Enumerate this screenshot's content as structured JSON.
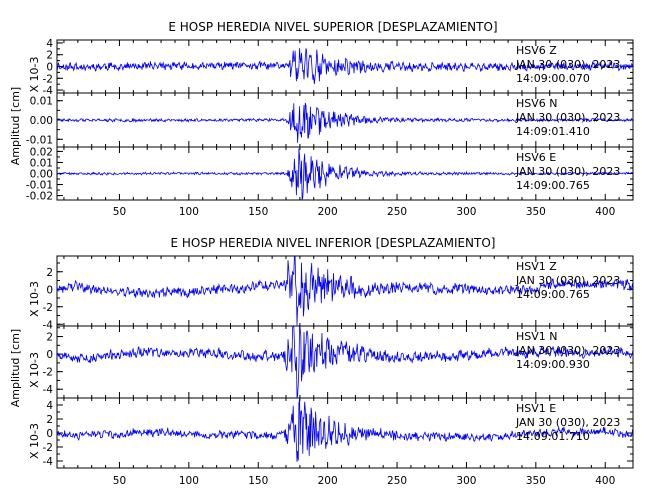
{
  "chart_data": [
    {
      "type": "line",
      "title": "E HOSP HEREDIA NIVEL SUPERIOR [DESPLAZAMIENTO]",
      "ylabel": "Amplitud [cm]",
      "x_ticks": [
        50,
        100,
        150,
        200,
        250,
        300,
        350,
        400
      ],
      "xlim": [
        5,
        420
      ],
      "event_x": 178,
      "panels": [
        {
          "station": "HSV6",
          "component": "Z",
          "date": "JAN 30 (030), 2023",
          "time": "14:09:00.070",
          "ylabel": "X 10-3",
          "ylim": [
            -4.5,
            4.5
          ],
          "y_ticks": [
            "4",
            "2",
            "0",
            "-2",
            "-4"
          ],
          "y_tick_values": [
            4,
            2,
            0,
            -2,
            -4
          ],
          "noise": 0.55,
          "peak": 3.2,
          "drift": 0.2,
          "seed": 11
        },
        {
          "station": "HSV6",
          "component": "N",
          "date": "JAN 30 (030), 2023",
          "time": "14:09:01.410",
          "ylabel": "",
          "ylim": [
            -0.014,
            0.014
          ],
          "y_ticks": [
            "0.01",
            "0.00",
            "-0.01"
          ],
          "y_tick_values": [
            0.01,
            0,
            -0.01
          ],
          "noise": 0.0006,
          "peak": 0.011,
          "drift": 0.0002,
          "seed": 23
        },
        {
          "station": "HSV6",
          "component": "E",
          "date": "JAN 30 (030), 2023",
          "time": "14:09:00.765",
          "ylabel": "",
          "ylim": [
            -0.024,
            0.024
          ],
          "y_ticks": [
            "0.02",
            "0.01",
            "0.00",
            "-0.01",
            "-0.02"
          ],
          "y_tick_values": [
            0.02,
            0.01,
            0,
            -0.01,
            -0.02
          ],
          "noise": 0.0009,
          "peak": 0.021,
          "drift": 0.0003,
          "seed": 37
        }
      ]
    },
    {
      "type": "line",
      "title": "E HOSP HEREDIA NIVEL INFERIOR [DESPLAZAMIENTO]",
      "ylabel": "Amplitud [cm]",
      "x_ticks": [
        50,
        100,
        150,
        200,
        250,
        300,
        350,
        400
      ],
      "xlim": [
        5,
        420
      ],
      "event_x": 176,
      "panels": [
        {
          "station": "HSV1",
          "component": "Z",
          "date": "JAN 30 (030), 2023",
          "time": "14:09:00.765",
          "ylabel": "X 10-3",
          "ylim": [
            -4.2,
            3.8
          ],
          "y_ticks": [
            "2",
            "0",
            "-2",
            "-4"
          ],
          "y_tick_values": [
            2,
            0,
            -2,
            -4
          ],
          "noise": 0.45,
          "peak": 3.8,
          "drift": 0.7,
          "seed": 41
        },
        {
          "station": "HSV1",
          "component": "N",
          "date": "JAN 30 (030), 2023",
          "time": "14:09:00.930",
          "ylabel": "X 10-3",
          "ylim": [
            -5.0,
            3.2
          ],
          "y_ticks": [
            "2",
            "0",
            "-2",
            "-4"
          ],
          "y_tick_values": [
            2,
            0,
            -2,
            -4
          ],
          "noise": 0.45,
          "peak": 4.2,
          "drift": 0.6,
          "seed": 53
        },
        {
          "station": "HSV1",
          "component": "E",
          "date": "JAN 30 (030), 2023",
          "time": "14:09:01.710",
          "ylabel": "X 10-3",
          "ylim": [
            -5.0,
            5.0
          ],
          "y_ticks": [
            "4",
            "2",
            "0",
            "-2",
            "-4"
          ],
          "y_tick_values": [
            4,
            2,
            0,
            -2,
            -4
          ],
          "noise": 0.45,
          "peak": 4.6,
          "drift": 0.6,
          "seed": 67
        }
      ]
    }
  ],
  "colors": {
    "trace": "#0000ff",
    "axis": "#000000",
    "background": "#ffffff"
  }
}
